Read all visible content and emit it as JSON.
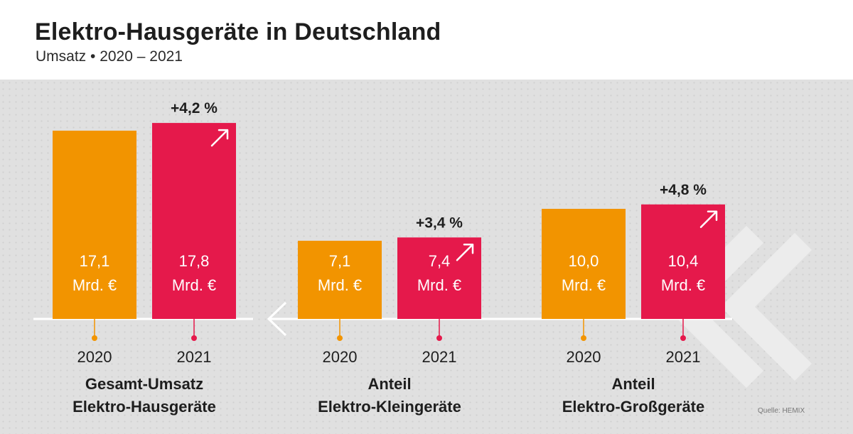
{
  "title": "Elektro-Hausgeräte in Deutschland",
  "subtitle": "Umsatz • 2020 – 2021",
  "source": "Quelle: HEMIX",
  "colors": {
    "y2020": "#f29400",
    "y2021": "#e5194b",
    "background": "#e0e0e0",
    "text": "#1e1e1e"
  },
  "chart_data": {
    "type": "bar",
    "unit": "Mrd. €",
    "groups": [
      {
        "label": [
          "Gesamt-Umsatz",
          "Elektro-Hausgeräte"
        ],
        "categories": [
          "2020",
          "2021"
        ],
        "values": [
          17.1,
          17.8
        ],
        "value_labels": [
          "17,1",
          "17,8"
        ],
        "change": "+4,2 %"
      },
      {
        "label": [
          "Anteil",
          "Elektro-Kleingeräte"
        ],
        "categories": [
          "2020",
          "2021"
        ],
        "values": [
          7.1,
          7.4
        ],
        "value_labels": [
          "7,1",
          "7,4"
        ],
        "change": "+3,4 %"
      },
      {
        "label": [
          "Anteil",
          "Elektro-Großgeräte"
        ],
        "categories": [
          "2020",
          "2021"
        ],
        "values": [
          10.0,
          10.4
        ],
        "value_labels": [
          "10,0",
          "10,4"
        ],
        "change": "+4,8 %"
      }
    ]
  }
}
